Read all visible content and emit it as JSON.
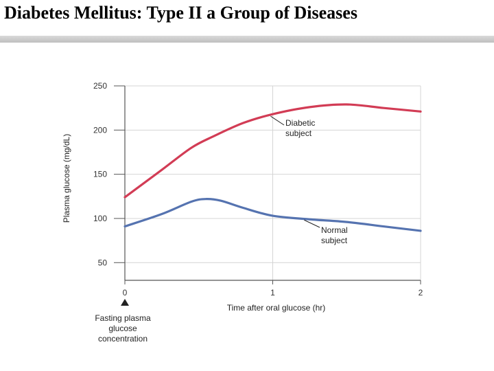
{
  "slide": {
    "title": "Diabetes Mellitus: Type II a Group of Diseases"
  },
  "chart_data": {
    "type": "line",
    "xlabel": "Time after oral glucose (hr)",
    "ylabel": "Plasma glucose (mg/dL)",
    "xlim": [
      0,
      2
    ],
    "ylim": [
      30,
      250
    ],
    "xticks": [
      0,
      1,
      2
    ],
    "yticks": [
      50,
      100,
      150,
      200,
      250
    ],
    "grid": true,
    "series": [
      {
        "name": "Diabetic subject",
        "label_lines": [
          "Diabetic",
          "subject"
        ],
        "color": "#d23c55",
        "x": [
          0,
          0.25,
          0.45,
          0.6,
          0.8,
          1.0,
          1.25,
          1.5,
          1.75,
          2.0
        ],
        "y": [
          124,
          155,
          180,
          193,
          208,
          218,
          226,
          229,
          225,
          221
        ]
      },
      {
        "name": "Normal subject",
        "label_lines": [
          "Normal",
          "subject"
        ],
        "color": "#5573b0",
        "x": [
          0,
          0.25,
          0.45,
          0.55,
          0.65,
          0.8,
          1.0,
          1.25,
          1.5,
          1.75,
          2.0
        ],
        "y": [
          91,
          105,
          119,
          122,
          120,
          112,
          103,
          99,
          96,
          91,
          86
        ]
      }
    ],
    "annotation": {
      "x": 0,
      "lines": [
        "Fasting plasma",
        "glucose",
        "concentration"
      ]
    }
  }
}
